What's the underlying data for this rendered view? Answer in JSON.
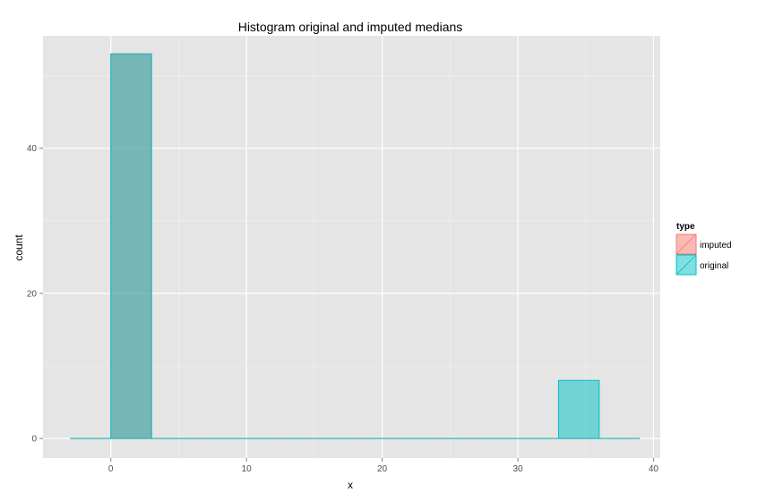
{
  "chart_data": {
    "type": "bar",
    "title": "Histogram original and imputed medians",
    "xlabel": "x",
    "ylabel": "count",
    "xlim": [
      -5,
      40.5
    ],
    "ylim": [
      -2.7,
      55.5
    ],
    "x_ticks": [
      0,
      10,
      20,
      30,
      40
    ],
    "y_ticks": [
      0,
      20,
      40
    ],
    "grid": true,
    "legend": {
      "title": "type",
      "position": "right",
      "entries": [
        "imputed",
        "original"
      ]
    },
    "series": [
      {
        "name": "imputed",
        "color": "#F8766D",
        "bins": [
          {
            "x0": -3,
            "x1": 0,
            "count": 0
          },
          {
            "x0": 0,
            "x1": 3,
            "count": 53
          },
          {
            "x0": 3,
            "x1": 6,
            "count": 0
          },
          {
            "x0": 6,
            "x1": 9,
            "count": 0
          },
          {
            "x0": 9,
            "x1": 12,
            "count": 0
          },
          {
            "x0": 12,
            "x1": 15,
            "count": 0
          },
          {
            "x0": 15,
            "x1": 18,
            "count": 0
          },
          {
            "x0": 18,
            "x1": 21,
            "count": 0
          },
          {
            "x0": 21,
            "x1": 24,
            "count": 0
          },
          {
            "x0": 24,
            "x1": 27,
            "count": 0
          },
          {
            "x0": 27,
            "x1": 30,
            "count": 0
          },
          {
            "x0": 30,
            "x1": 33,
            "count": 0
          },
          {
            "x0": 33,
            "x1": 36,
            "count": 0
          },
          {
            "x0": 36,
            "x1": 39,
            "count": 0
          }
        ]
      },
      {
        "name": "original",
        "color": "#00BFC4",
        "bins": [
          {
            "x0": -3,
            "x1": 0,
            "count": 0
          },
          {
            "x0": 0,
            "x1": 3,
            "count": 53
          },
          {
            "x0": 3,
            "x1": 6,
            "count": 0
          },
          {
            "x0": 6,
            "x1": 9,
            "count": 0
          },
          {
            "x0": 9,
            "x1": 12,
            "count": 0
          },
          {
            "x0": 12,
            "x1": 15,
            "count": 0
          },
          {
            "x0": 15,
            "x1": 18,
            "count": 0
          },
          {
            "x0": 18,
            "x1": 21,
            "count": 0
          },
          {
            "x0": 21,
            "x1": 24,
            "count": 0
          },
          {
            "x0": 24,
            "x1": 27,
            "count": 0
          },
          {
            "x0": 27,
            "x1": 30,
            "count": 0
          },
          {
            "x0": 30,
            "x1": 33,
            "count": 0
          },
          {
            "x0": 33,
            "x1": 36,
            "count": 8
          },
          {
            "x0": 36,
            "x1": 39,
            "count": 0
          }
        ]
      }
    ]
  }
}
